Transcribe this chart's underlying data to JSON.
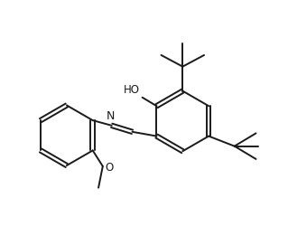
{
  "bg_color": "#ffffff",
  "line_color": "#1a1a1a",
  "line_width": 1.4,
  "font_size": 8.5,
  "figsize": [
    3.19,
    2.71
  ],
  "dpi": 100,
  "xlim": [
    0,
    10
  ],
  "ylim": [
    0,
    8.5
  ]
}
